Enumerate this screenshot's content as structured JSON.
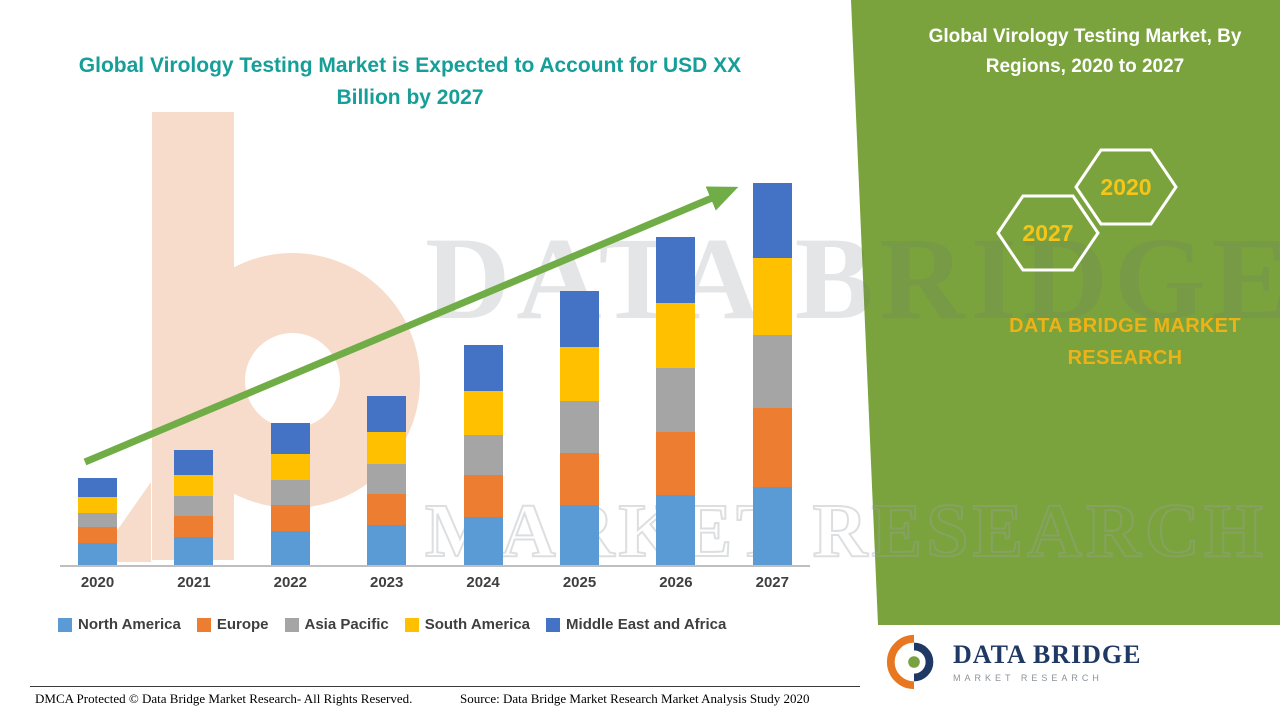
{
  "page": {
    "background": "#ffffff"
  },
  "header": {
    "left_title": "Global Virology Testing Market is Expected to Account for USD XX Billion by 2027",
    "right_title": "Global Virology Testing Market, By Regions, 2020 to 2027"
  },
  "side_panel": {
    "panel_color": "#7AA33D",
    "hexagons": [
      {
        "label": "2027"
      },
      {
        "label": "2020"
      }
    ],
    "brand_text": "DATA BRIDGE MARKET RESEARCH",
    "brand_text_color": "#EDB217"
  },
  "chart_data": {
    "type": "bar",
    "stacked": true,
    "title": "Global Virology Testing Market is Expected to Account for USD XX Billion by 2027",
    "xlabel": "",
    "ylabel": "",
    "y_axis_visible": false,
    "values_note": "Exact market values not disclosed (shown as XX); series values are relative stacked heights read from the bars",
    "legend_position": "bottom",
    "trend_arrow": true,
    "trend_arrow_color": "#70AD47",
    "categories": [
      "2020",
      "2021",
      "2022",
      "2023",
      "2024",
      "2025",
      "2026",
      "2027"
    ],
    "series": [
      {
        "name": "North America",
        "color": "#5B9BD5",
        "values": [
          22,
          28,
          34,
          40,
          48,
          60,
          70,
          78
        ]
      },
      {
        "name": "Europe",
        "color": "#ED7D31",
        "values": [
          16,
          21,
          26,
          31,
          42,
          52,
          63,
          79
        ]
      },
      {
        "name": "Asia Pacific",
        "color": "#A5A5A5",
        "values": [
          14,
          20,
          25,
          30,
          40,
          52,
          64,
          73
        ]
      },
      {
        "name": "South America",
        "color": "#FFC000",
        "values": [
          16,
          21,
          26,
          32,
          44,
          54,
          65,
          77
        ]
      },
      {
        "name": "Middle East and Africa",
        "color": "#4472C4",
        "values": [
          19,
          25,
          31,
          36,
          46,
          56,
          66,
          75
        ]
      }
    ]
  },
  "watermark": {
    "line1": "DATA BRIDGE",
    "line2": "MARKET RESEARCH"
  },
  "logo": {
    "name": "DATA BRIDGE",
    "tagline": "MARKET RESEARCH"
  },
  "footer": {
    "dmca": "DMCA Protected © Data Bridge Market Research- All Rights Reserved.",
    "source": "Source: Data Bridge Market Research Market Analysis Study 2020"
  }
}
